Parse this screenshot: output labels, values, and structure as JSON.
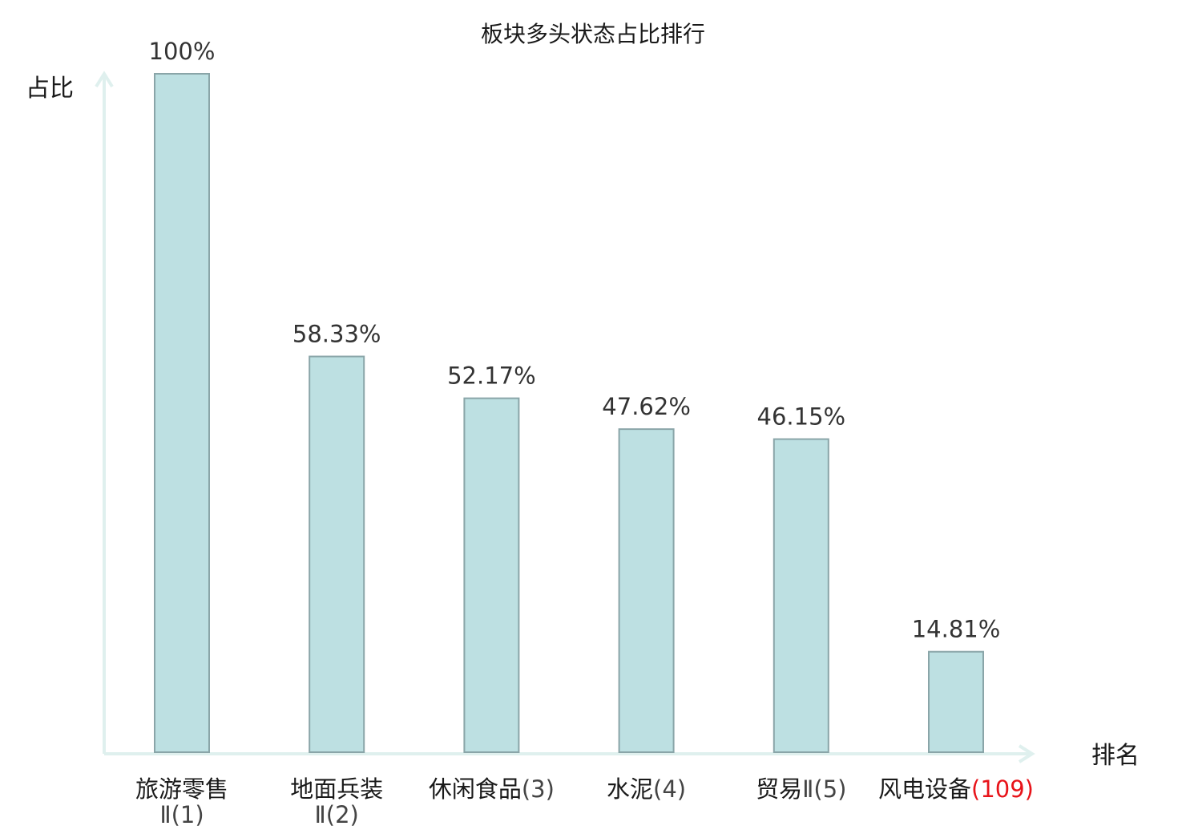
{
  "chart_data": {
    "type": "bar",
    "title": "板块多头状态占比排行",
    "ylabel": "占比",
    "xlabel": "排名",
    "ylim": [
      0,
      100
    ],
    "grid": false,
    "categories": [
      {
        "name": "旅游零售",
        "suffix": "Ⅱ(1)",
        "rank": 1
      },
      {
        "name": "地面兵装",
        "suffix": "Ⅱ(2)",
        "rank": 2
      },
      {
        "name": "休闲食品",
        "suffix": "(3)",
        "rank": 3
      },
      {
        "name": "水泥",
        "suffix": "(4)",
        "rank": 4
      },
      {
        "name": "贸易",
        "suffix": "Ⅱ(5)",
        "rank": 5
      },
      {
        "name": "风电设备",
        "suffix": "(109)",
        "rank": 109,
        "highlight": true
      }
    ],
    "values": [
      100,
      58.33,
      52.17,
      47.62,
      46.15,
      14.81
    ],
    "value_labels": [
      "100%",
      "58.33%",
      "52.17%",
      "47.62%",
      "46.15%",
      "14.81%"
    ],
    "colors": {
      "bar_fill": "#bde0e2",
      "bar_stroke": "#8aa5a8",
      "axis": "#dff0ee",
      "highlight": "#e8141a"
    }
  }
}
